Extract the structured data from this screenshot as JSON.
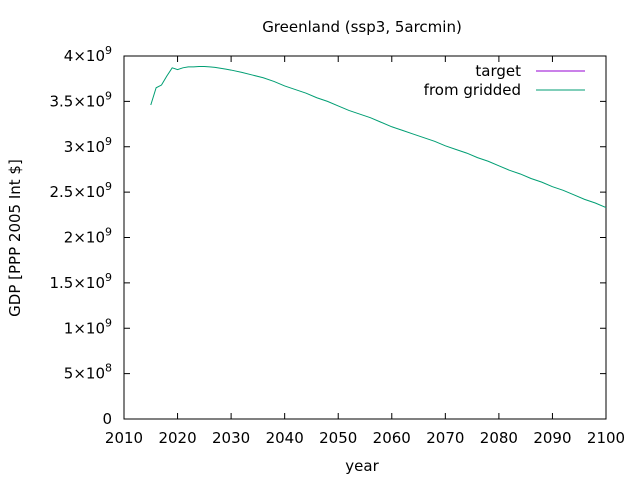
{
  "chart_data": {
    "type": "line",
    "title": "Greenland (ssp3, 5arcmin)",
    "xlabel": "year",
    "ylabel": "GDP [PPP 2005 Int $]",
    "xlim": [
      2010,
      2100
    ],
    "ylim": [
      0,
      4000000000
    ],
    "x_ticks": [
      2010,
      2020,
      2030,
      2040,
      2050,
      2060,
      2070,
      2080,
      2090,
      2100
    ],
    "y_ticks": [
      {
        "value": 0,
        "mantissa": "0",
        "exponent": ""
      },
      {
        "value": 500000000,
        "mantissa": "5×10",
        "exponent": "8"
      },
      {
        "value": 1000000000,
        "mantissa": "1×10",
        "exponent": "9"
      },
      {
        "value": 1500000000,
        "mantissa": "1.5×10",
        "exponent": "9"
      },
      {
        "value": 2000000000,
        "mantissa": "2×10",
        "exponent": "9"
      },
      {
        "value": 2500000000,
        "mantissa": "2.5×10",
        "exponent": "9"
      },
      {
        "value": 3000000000,
        "mantissa": "3×10",
        "exponent": "9"
      },
      {
        "value": 3500000000,
        "mantissa": "3.5×10",
        "exponent": "9"
      },
      {
        "value": 4000000000,
        "mantissa": "4×10",
        "exponent": "9"
      }
    ],
    "grid": false,
    "legend_position": "top-right",
    "series": [
      {
        "name": "target",
        "color": "#9400d3",
        "x": [],
        "y": []
      },
      {
        "name": "from gridded",
        "color": "#009e73",
        "x": [
          2015,
          2016,
          2017,
          2018,
          2019,
          2020,
          2021,
          2022,
          2023,
          2024,
          2025,
          2026,
          2027,
          2028,
          2029,
          2030,
          2032,
          2034,
          2036,
          2038,
          2040,
          2042,
          2044,
          2046,
          2048,
          2050,
          2052,
          2054,
          2056,
          2058,
          2060,
          2062,
          2064,
          2066,
          2068,
          2070,
          2072,
          2074,
          2076,
          2078,
          2080,
          2082,
          2084,
          2086,
          2088,
          2090,
          2092,
          2094,
          2096,
          2098,
          2100
        ],
        "y": [
          3460000000,
          3650000000,
          3680000000,
          3780000000,
          3870000000,
          3850000000,
          3870000000,
          3880000000,
          3880000000,
          3885000000,
          3885000000,
          3880000000,
          3875000000,
          3865000000,
          3855000000,
          3845000000,
          3820000000,
          3790000000,
          3760000000,
          3720000000,
          3670000000,
          3630000000,
          3590000000,
          3540000000,
          3500000000,
          3450000000,
          3400000000,
          3360000000,
          3320000000,
          3270000000,
          3220000000,
          3180000000,
          3140000000,
          3100000000,
          3060000000,
          3010000000,
          2970000000,
          2930000000,
          2880000000,
          2840000000,
          2790000000,
          2740000000,
          2700000000,
          2650000000,
          2610000000,
          2560000000,
          2520000000,
          2470000000,
          2420000000,
          2380000000,
          2330000000
        ]
      }
    ]
  }
}
